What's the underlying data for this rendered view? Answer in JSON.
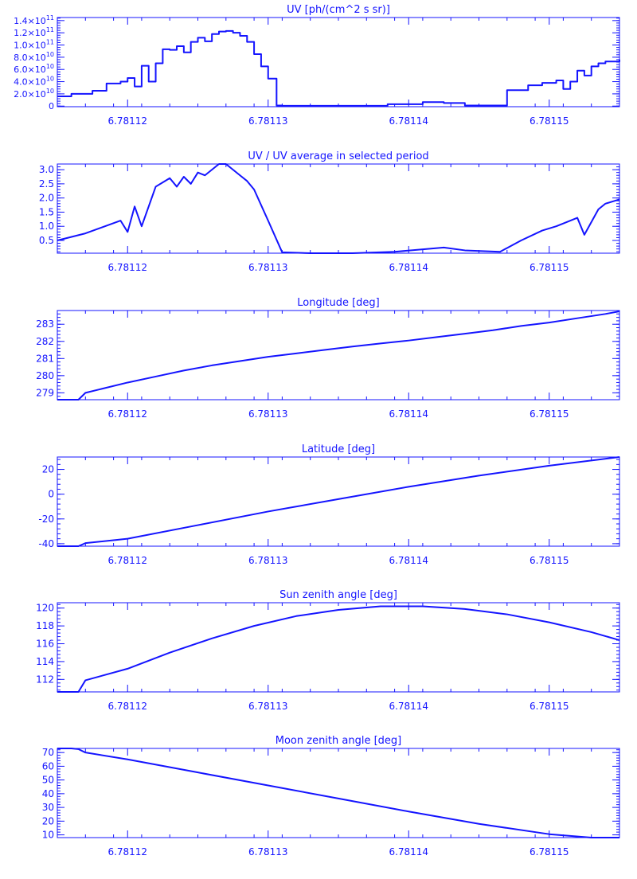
{
  "style": {
    "color": "#1414ff",
    "background": "#ffffff"
  },
  "chart_data": [
    {
      "type": "line",
      "title": "UV [ph/(cm^2 s sr)]",
      "xlabel": "",
      "ylabel": "",
      "xlim": [
        6.781115,
        6.781155
      ],
      "ylim": [
        -1000000000.0,
        145000000000.0
      ],
      "x_ticks": [
        6.78112,
        6.78113,
        6.78114,
        6.78115
      ],
      "x_tick_labels": [
        "6.78112",
        "6.78113",
        "6.78114",
        "6.78115"
      ],
      "y_ticks": [
        0,
        20000000000.0,
        40000000000.0,
        60000000000.0,
        80000000000.0,
        100000000000.0,
        120000000000.0,
        140000000000.0
      ],
      "y_tick_labels": [
        {
          "base": "0",
          "exp": ""
        },
        {
          "base": "2.0×10",
          "exp": "10"
        },
        {
          "base": "4.0×10",
          "exp": "10"
        },
        {
          "base": "6.0×10",
          "exp": "10"
        },
        {
          "base": "8.0×10",
          "exp": "10"
        },
        {
          "base": "1.0×10",
          "exp": "11"
        },
        {
          "base": "1.2×10",
          "exp": "11"
        },
        {
          "base": "1.4×10",
          "exp": "11"
        }
      ],
      "grid": false,
      "step": true,
      "x": [
        6.781115,
        6.781116,
        6.7811175,
        6.7811185,
        6.7811195,
        6.78112,
        6.7811205,
        6.781121,
        6.7811215,
        6.781122,
        6.7811225,
        6.781123,
        6.7811235,
        6.781124,
        6.7811245,
        6.781125,
        6.7811255,
        6.781126,
        6.7811265,
        6.781127,
        6.7811275,
        6.781128,
        6.7811285,
        6.781129,
        6.7811295,
        6.78113,
        6.7811305,
        6.7811306,
        6.781131,
        6.781135,
        6.7811385,
        6.781141,
        6.7811425,
        6.781144,
        6.781147,
        6.7811485,
        6.7811495,
        6.7811505,
        6.781151,
        6.7811515,
        6.781152,
        6.7811525,
        6.781153,
        6.7811535,
        6.781154,
        6.781155
      ],
      "series": [
        {
          "values": [
            16000000000.0,
            20000000000.0,
            25000000000.0,
            37000000000.0,
            40000000000.0,
            46000000000.0,
            32000000000.0,
            66000000000.0,
            40000000000.0,
            70000000000.0,
            93000000000.0,
            92000000000.0,
            98000000000.0,
            88000000000.0,
            105000000000.0,
            112000000000.0,
            106000000000.0,
            118000000000.0,
            122000000000.0,
            123000000000.0,
            120000000000.0,
            115000000000.0,
            105000000000.0,
            85000000000.0,
            65000000000.0,
            45000000000.0,
            45000000000.0,
            1000000000.0,
            500000000.0,
            500000000.0,
            3000000000.0,
            6500000000.0,
            5000000000.0,
            1000000000.0,
            26000000000.0,
            34000000000.0,
            38000000000.0,
            42000000000.0,
            28000000000.0,
            40000000000.0,
            58000000000.0,
            50000000000.0,
            65000000000.0,
            70000000000.0,
            73000000000.0,
            76000000000.0
          ]
        }
      ]
    },
    {
      "type": "line",
      "title": "UV / UV average in selected period",
      "xlabel": "",
      "ylabel": "",
      "xlim": [
        6.781115,
        6.781155
      ],
      "ylim": [
        0.05,
        3.2
      ],
      "x_ticks": [
        6.78112,
        6.78113,
        6.78114,
        6.78115
      ],
      "x_tick_labels": [
        "6.78112",
        "6.78113",
        "6.78114",
        "6.78115"
      ],
      "y_ticks": [
        0.5,
        1.0,
        1.5,
        2.0,
        2.5,
        3.0
      ],
      "y_tick_labels": [
        "0.5",
        "1.0",
        "1.5",
        "2.0",
        "2.5",
        "3.0"
      ],
      "grid": false,
      "x": [
        6.781115,
        6.781117,
        6.7811195,
        6.78112,
        6.7811205,
        6.781121,
        6.781122,
        6.7811225,
        6.781123,
        6.7811235,
        6.781124,
        6.7811245,
        6.781125,
        6.7811255,
        6.7811265,
        6.781127,
        6.7811275,
        6.781128,
        6.7811285,
        6.781129,
        6.78113,
        6.781131,
        6.781133,
        6.781136,
        6.781139,
        6.7811425,
        6.781144,
        6.7811465,
        6.781148,
        6.7811495,
        6.7811505,
        6.781151,
        6.781152,
        6.7811525,
        6.7811535,
        6.781154,
        6.781155
      ],
      "series": [
        {
          "values": [
            0.5,
            0.75,
            1.2,
            0.8,
            1.7,
            1.0,
            2.4,
            2.55,
            2.7,
            2.4,
            2.75,
            2.5,
            2.9,
            2.8,
            3.2,
            3.25,
            3.0,
            2.8,
            2.6,
            2.3,
            1.2,
            0.08,
            0.05,
            0.05,
            0.1,
            0.25,
            0.15,
            0.1,
            0.5,
            0.85,
            1.0,
            1.1,
            1.3,
            0.7,
            1.6,
            1.8,
            1.95
          ]
        }
      ]
    },
    {
      "type": "line",
      "title": "Longitude [deg]",
      "xlabel": "",
      "ylabel": "",
      "xlim": [
        6.781115,
        6.781155
      ],
      "ylim": [
        278.6,
        283.8
      ],
      "x_ticks": [
        6.78112,
        6.78113,
        6.78114,
        6.78115
      ],
      "x_tick_labels": [
        "6.78112",
        "6.78113",
        "6.78114",
        "6.78115"
      ],
      "y_ticks": [
        279,
        280,
        281,
        282,
        283
      ],
      "y_tick_labels": [
        "279",
        "280",
        "281",
        "282",
        "283"
      ],
      "grid": false,
      "x": [
        6.781115,
        6.7811165,
        6.781117,
        6.781118,
        6.78112,
        6.781122,
        6.781124,
        6.781126,
        6.781128,
        6.78113,
        6.781132,
        6.781134,
        6.781136,
        6.781138,
        6.78114,
        6.781142,
        6.781144,
        6.781146,
        6.781148,
        6.78115,
        6.781152,
        6.781154,
        6.781155
      ],
      "series": [
        {
          "values": [
            278.6,
            278.6,
            279.0,
            279.2,
            279.6,
            279.95,
            280.3,
            280.6,
            280.85,
            281.1,
            281.3,
            281.5,
            281.7,
            281.88,
            282.05,
            282.25,
            282.45,
            282.65,
            282.9,
            283.1,
            283.35,
            283.6,
            283.75
          ]
        }
      ]
    },
    {
      "type": "line",
      "title": "Latitude [deg]",
      "xlabel": "",
      "ylabel": "",
      "xlim": [
        6.781115,
        6.781155
      ],
      "ylim": [
        -42,
        30
      ],
      "x_ticks": [
        6.78112,
        6.78113,
        6.78114,
        6.78115
      ],
      "x_tick_labels": [
        "6.78112",
        "6.78113",
        "6.78114",
        "6.78115"
      ],
      "y_ticks": [
        -40,
        -20,
        0,
        20
      ],
      "y_tick_labels": [
        "-40",
        "-20",
        "0",
        "20"
      ],
      "grid": false,
      "x": [
        6.781115,
        6.7811165,
        6.781117,
        6.78112,
        6.781125,
        6.78113,
        6.781135,
        6.78114,
        6.781145,
        6.78115,
        6.781155
      ],
      "series": [
        {
          "values": [
            -42,
            -42,
            -39.5,
            -36,
            -25,
            -14,
            -4,
            6,
            15,
            23,
            30
          ]
        }
      ]
    },
    {
      "type": "line",
      "title": "Sun zenith angle [deg]",
      "xlabel": "",
      "ylabel": "",
      "xlim": [
        6.781115,
        6.781155
      ],
      "ylim": [
        110.6,
        120.6
      ],
      "x_ticks": [
        6.78112,
        6.78113,
        6.78114,
        6.78115
      ],
      "x_tick_labels": [
        "6.78112",
        "6.78113",
        "6.78114",
        "6.78115"
      ],
      "y_ticks": [
        112,
        114,
        116,
        118,
        120
      ],
      "y_tick_labels": [
        "112",
        "114",
        "116",
        "118",
        "120"
      ],
      "grid": false,
      "x": [
        6.781115,
        6.7811165,
        6.781117,
        6.78112,
        6.781123,
        6.781126,
        6.781129,
        6.781132,
        6.781135,
        6.781138,
        6.781141,
        6.781144,
        6.781147,
        6.78115,
        6.781153,
        6.781155
      ],
      "series": [
        {
          "values": [
            110.6,
            110.6,
            111.9,
            113.2,
            115.0,
            116.6,
            118.0,
            119.1,
            119.8,
            120.2,
            120.2,
            119.9,
            119.3,
            118.4,
            117.3,
            116.4
          ]
        }
      ]
    },
    {
      "type": "line",
      "title": "Moon zenith angle [deg]",
      "xlabel": "",
      "ylabel": "",
      "xlim": [
        6.781115,
        6.781155
      ],
      "ylim": [
        8,
        73
      ],
      "x_ticks": [
        6.78112,
        6.78113,
        6.78114,
        6.78115
      ],
      "x_tick_labels": [
        "6.78112",
        "6.78113",
        "6.78114",
        "6.78115"
      ],
      "y_ticks": [
        10,
        20,
        30,
        40,
        50,
        60,
        70
      ],
      "y_tick_labels": [
        "10",
        "20",
        "30",
        "40",
        "50",
        "60",
        "70"
      ],
      "grid": false,
      "x": [
        6.781115,
        6.781116,
        6.7811165,
        6.781117,
        6.78112,
        6.781125,
        6.78113,
        6.781135,
        6.78114,
        6.781145,
        6.78115,
        6.781153,
        6.781155
      ],
      "series": [
        {
          "values": [
            73,
            73,
            72.5,
            70,
            65,
            55.5,
            46,
            36.5,
            27,
            18,
            10.5,
            8,
            8
          ]
        }
      ]
    }
  ]
}
